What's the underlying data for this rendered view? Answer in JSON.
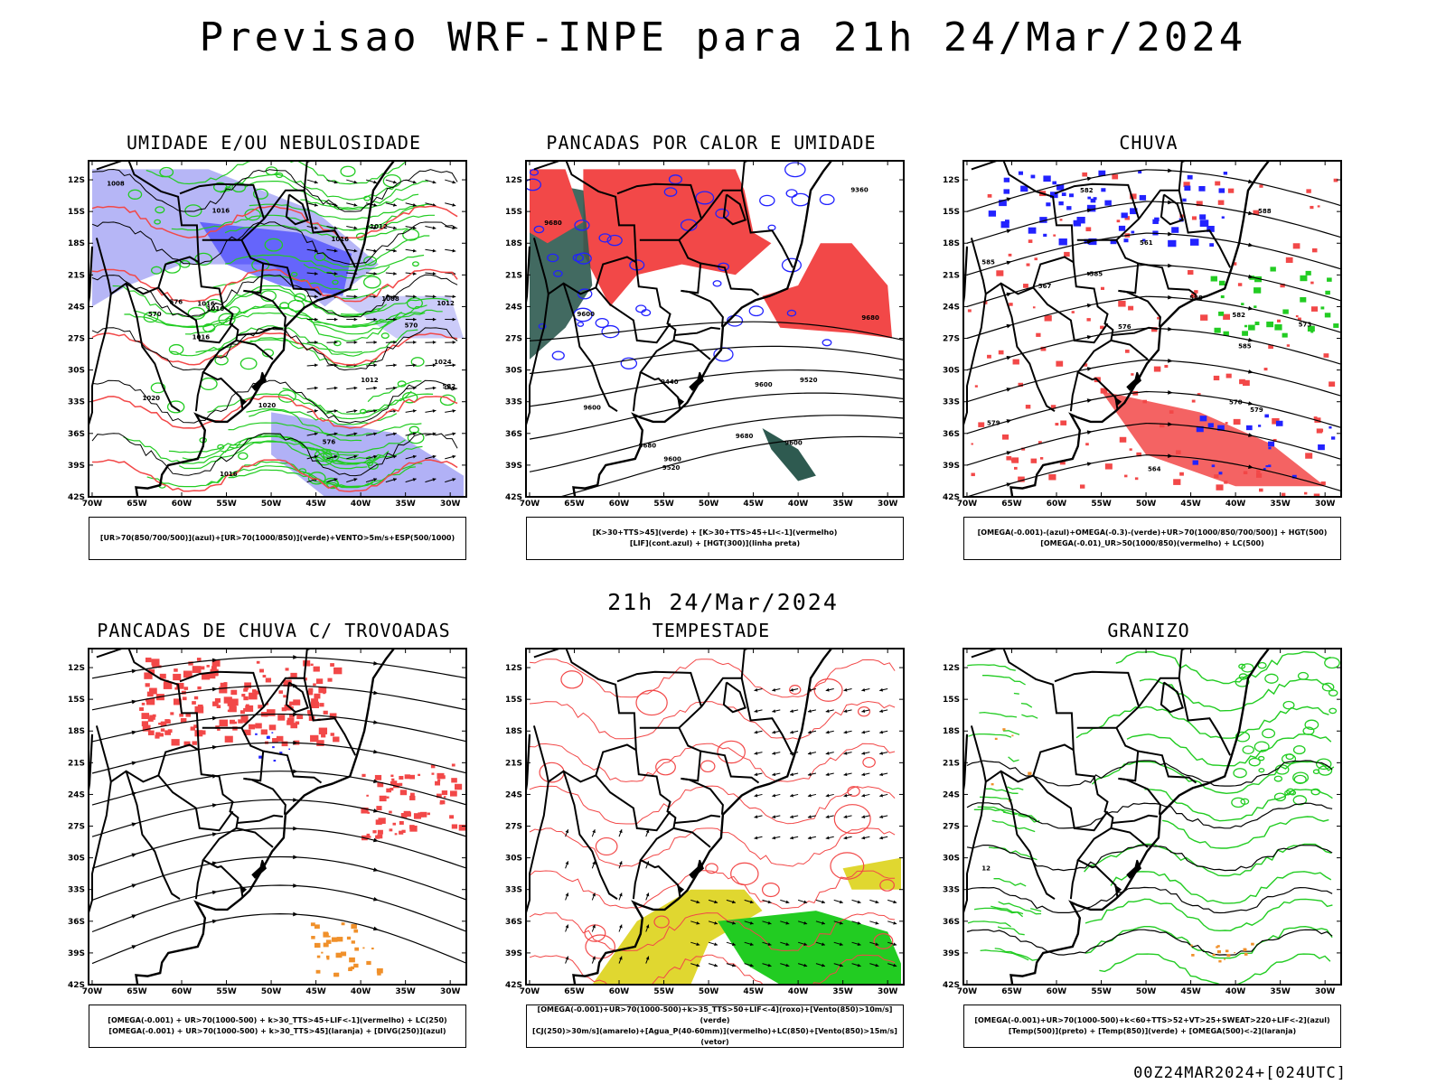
{
  "header": {
    "title": "Previsao WRF-INPE  para 21h 24/Mar/2024"
  },
  "middle_title": "21h 24/Mar/2024",
  "footer": "00Z24MAR2024+[024UTC]",
  "axes": {
    "lat_labels": [
      "12S",
      "15S",
      "18S",
      "21S",
      "24S",
      "27S",
      "30S",
      "33S",
      "36S",
      "39S",
      "42S"
    ],
    "lon_labels": [
      "70W",
      "65W",
      "60W",
      "55W",
      "50W",
      "45W",
      "40W",
      "35W",
      "30W"
    ]
  },
  "colors": {
    "blue": "#2222ff",
    "lightblue": "#a9a9f5",
    "green": "#22cc22",
    "red": "#f24848",
    "darkgreen": "#2e5a50",
    "yellow": "#e0d730",
    "orange": "#f0902a",
    "black": "#000000"
  },
  "panels": [
    {
      "id": "umidade",
      "title": "UMIDADE E/OU NEBULOSIDADE",
      "legend": [
        "[UR>70(850/700/500)](azul)+[UR>70(1000/850)](verde)+VENTO>5m/s+ESP(500/1000)"
      ],
      "contour_labels": [
        "1008",
        "1008",
        "1012",
        "1016",
        "1016",
        "1012",
        "1016",
        "1016",
        "1020",
        "1024",
        "1016",
        "1016",
        "1012",
        "1020",
        "576",
        "570",
        "582",
        "570",
        "576"
      ]
    },
    {
      "id": "pancadas-calor",
      "title": "PANCADAS POR CALOR E UMIDADE",
      "legend": [
        "[K>30+TTS>45](verde) + [K>30+TTS>45+LI<-1](vermelho)",
        "[LIF](cont.azul) + [HGT(300)](linha preta)"
      ],
      "contour_labels": [
        "9680",
        "9680",
        "9680",
        "9600",
        "9680",
        "9600",
        "9600",
        "9520",
        "9600",
        "9440",
        "9520",
        "9360",
        "9600"
      ]
    },
    {
      "id": "chuva",
      "title": "CHUVA",
      "legend": [
        "[OMEGA(-0.001)-(azul)+OMEGA(-0.3)-(verde)+UR>70(1000/850/700/500)] + HGT(500)",
        "[OMEGA(-0.01)_UR>50(1000/850)(vermelho) + LC(500)"
      ],
      "contour_labels": [
        "585",
        "585",
        "588",
        "585",
        "588",
        "582",
        "573",
        "576",
        "579",
        "570",
        "567",
        "564",
        "561",
        "582",
        "579"
      ]
    },
    {
      "id": "pancadas-trovoadas",
      "title": "PANCADAS DE CHUVA C/ TROVOADAS",
      "legend": [
        "[OMEGA(-0.001) + UR>70(1000-500) + k>30_TTS>45+LIF<-1](vermelho) + LC(250)",
        "[OMEGA(-0.001) + UR>70(1000-500) + k>30_TTS>45](laranja) + [DIVG(250)](azul)"
      ],
      "contour_labels": []
    },
    {
      "id": "tempestade",
      "title": "TEMPESTADE",
      "legend": [
        "[OMEGA(-0.001)+UR>70(1000-500)+k>35_TTS>50+LIF<-4](roxo)+[Vento(850)>10m/s](verde)",
        "[CJ(250)>30m/s](amarelo)+[Agua_P(40-60mm)](vermelho)+LC(850)+[Vento(850)>15m/s](vetor)"
      ],
      "contour_labels": []
    },
    {
      "id": "granizo",
      "title": "GRANIZO",
      "legend": [
        "[OMEGA(-0.001)+UR>70(1000-500)+k<60+TTS>52+VT>25+SWEAT>220+LIF<-2](azul)",
        "[Temp(500)](preto) + [Temp(850)](verde) + [OMEGA(500)<-2](laranja)"
      ],
      "contour_labels": [
        "12"
      ]
    }
  ]
}
